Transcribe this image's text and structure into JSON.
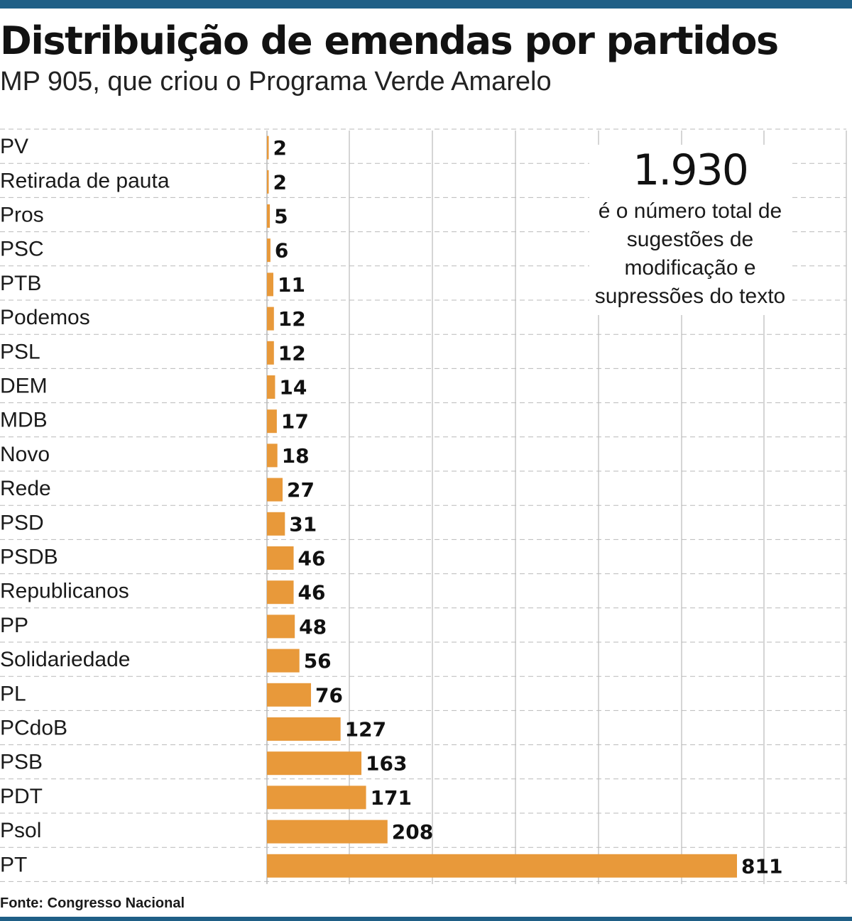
{
  "header": {
    "title": "Distribuição de emendas por partidos",
    "subtitle": "MP 905, que criou o Programa Verde Amarelo"
  },
  "callout": {
    "value": "1.930",
    "text": "é o número total de sugestões de modificação e supressões do texto"
  },
  "footer": {
    "source": "Fonte: Congresso Nacional"
  },
  "colors": {
    "bar": "#e8993a",
    "rule": "#1f5f86",
    "grid": "#b9b9b9"
  },
  "chart_data": {
    "type": "bar",
    "orientation": "horizontal",
    "categories": [
      "PV",
      "Retirada de pauta",
      "Pros",
      "PSC",
      "PTB",
      "Podemos",
      "PSL",
      "DEM",
      "MDB",
      "Novo",
      "Rede",
      "PSD",
      "PSDB",
      "Republicanos",
      "PP",
      "Solidariedade",
      "PL",
      "PCdoB",
      "PSB",
      "PDT",
      "Psol",
      "PT"
    ],
    "values": [
      2,
      2,
      5,
      6,
      11,
      12,
      12,
      14,
      17,
      18,
      27,
      31,
      46,
      46,
      48,
      56,
      76,
      127,
      163,
      171,
      208,
      811
    ],
    "xlim": [
      0,
      850
    ],
    "grid": true,
    "data_labels": true
  }
}
